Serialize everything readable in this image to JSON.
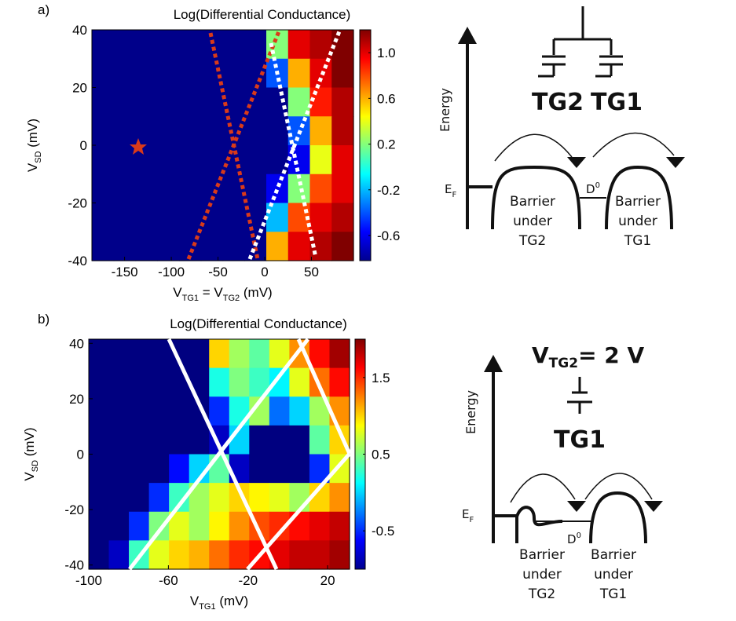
{
  "chart_data": [
    {
      "type": "heatmap",
      "panel_label": "a)",
      "title": "Log(Differential Conductance)",
      "xlabel": [
        "V",
        "TG1",
        " = V",
        "TG2",
        " (mV)"
      ],
      "ylabel": [
        "V",
        "SD",
        " (mV)"
      ],
      "xlim": [
        -185,
        95
      ],
      "ylim": [
        -40,
        40
      ],
      "xticks": [
        -150,
        -100,
        -50,
        0,
        50
      ],
      "yticks": [
        -40,
        -20,
        0,
        20,
        40
      ],
      "clim": [
        -0.82,
        1.2
      ],
      "cticks": [
        -0.6,
        -0.2,
        0.2,
        0.6,
        {
          "value": 1.0,
          "label": "1.0"
        }
      ],
      "z": [
        [
          -0.8,
          -0.8,
          -0.8,
          -0.8,
          -0.8,
          -0.8,
          -0.8,
          -0.8,
          0.2,
          1.0,
          1.1,
          1.2
        ],
        [
          -0.8,
          -0.8,
          -0.8,
          -0.8,
          -0.8,
          -0.8,
          -0.8,
          -0.8,
          -0.4,
          0.6,
          1.0,
          1.2
        ],
        [
          -0.8,
          -0.8,
          -0.8,
          -0.8,
          -0.8,
          -0.8,
          -0.8,
          -0.8,
          -0.8,
          0.2,
          0.9,
          1.1
        ],
        [
          -0.8,
          -0.8,
          -0.8,
          -0.8,
          -0.8,
          -0.8,
          -0.8,
          -0.8,
          -0.8,
          -0.4,
          0.6,
          1.1
        ],
        [
          -0.8,
          -0.8,
          -0.8,
          -0.8,
          -0.8,
          -0.8,
          -0.8,
          -0.8,
          -0.8,
          -0.6,
          0.4,
          1.0
        ],
        [
          -0.8,
          -0.8,
          -0.8,
          -0.8,
          -0.8,
          -0.8,
          -0.8,
          -0.8,
          -0.6,
          0.2,
          0.8,
          1.0
        ],
        [
          -0.8,
          -0.8,
          -0.8,
          -0.8,
          -0.8,
          -0.8,
          -0.8,
          -0.8,
          -0.2,
          0.8,
          1.0,
          1.1
        ],
        [
          -0.8,
          -0.8,
          -0.8,
          -0.8,
          -0.8,
          -0.8,
          -0.8,
          -0.8,
          0.6,
          1.0,
          1.1,
          1.2
        ]
      ]
    },
    {
      "type": "heatmap",
      "panel_label": "b)",
      "title": "Log(Differential Conductance)",
      "xlabel": [
        "V",
        "TG1",
        " (mV)"
      ],
      "ylabel": [
        "V",
        "SD",
        " (mV)"
      ],
      "xlim": [
        -100,
        31
      ],
      "ylim": [
        -41.5,
        41.5
      ],
      "xticks": [
        -100,
        -60,
        -20,
        20
      ],
      "yticks": [
        -40,
        -20,
        0,
        20,
        40
      ],
      "clim": [
        -1,
        2
      ],
      "cticks": [
        -0.5,
        0.5,
        1.5
      ],
      "z": [
        [
          -1,
          -1,
          -1,
          -1,
          -1,
          -1,
          1.0,
          0.6,
          0.4,
          0.8,
          1.2,
          1.6,
          1.9
        ],
        [
          -1,
          -1,
          -1,
          -1,
          -1,
          -1,
          0.2,
          0.5,
          0.3,
          0.1,
          0.8,
          1.3,
          1.6
        ],
        [
          -1,
          -1,
          -1,
          -1,
          -1,
          -1,
          -0.5,
          0.2,
          0.6,
          -0.3,
          0.0,
          0.6,
          1.2
        ],
        [
          -1,
          -1,
          -1,
          -1,
          -1,
          -1,
          -0.8,
          0.0,
          -1,
          -1,
          -1,
          0.4,
          1.0
        ],
        [
          -1,
          -1,
          -1,
          -1,
          -0.6,
          0.0,
          0.4,
          -0.8,
          -1,
          -1,
          -1,
          -0.5,
          0.8
        ],
        [
          -1,
          -1,
          -1,
          -0.5,
          0.3,
          0.6,
          0.8,
          1.0,
          0.9,
          0.8,
          0.6,
          1.0,
          1.2
        ],
        [
          -1,
          -1,
          -0.5,
          0.5,
          0.8,
          0.6,
          0.9,
          1.2,
          1.4,
          1.5,
          1.6,
          1.7,
          1.8
        ],
        [
          -1,
          -0.8,
          0.3,
          0.8,
          1.0,
          1.1,
          1.3,
          1.5,
          1.6,
          1.7,
          1.8,
          1.8,
          1.9
        ]
      ]
    }
  ],
  "diagrams": [
    {
      "axis_label": "Energy",
      "gates": [
        "TG2",
        "TG1"
      ],
      "fermi": [
        "E",
        "F"
      ],
      "dot": [
        "D",
        "0"
      ],
      "barriers": [
        [
          "Barrier",
          "under",
          "TG2"
        ],
        [
          "Barrier",
          "under",
          "TG1"
        ]
      ]
    },
    {
      "axis_label": "Energy",
      "gate_voltage": [
        "V",
        "TG2",
        "= 2 V"
      ],
      "gates": [
        "TG1"
      ],
      "fermi": [
        "E",
        "F"
      ],
      "dot": [
        "D",
        "0"
      ],
      "barriers": [
        [
          "Barrier",
          "under",
          "TG2"
        ],
        [
          "Barrier",
          "under",
          "TG1"
        ]
      ]
    }
  ]
}
